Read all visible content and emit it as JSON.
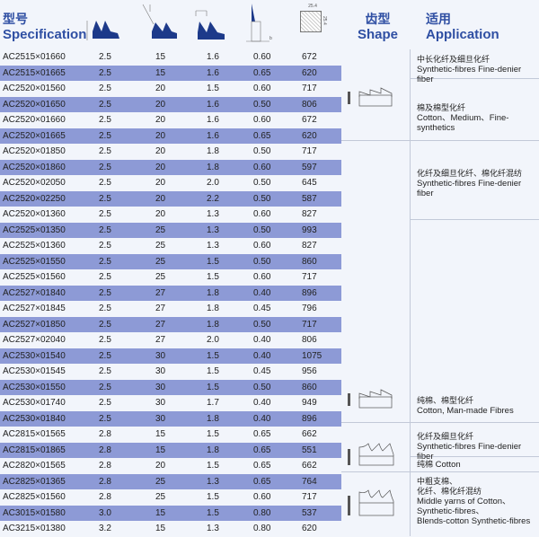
{
  "header": {
    "spec_zh": "型号",
    "spec_en": "Specification",
    "shape_zh": "齿型",
    "shape_en": "Shape",
    "app_zh": "适用",
    "app_en": "Application",
    "dim_label_width": "25.4",
    "dim_label_height": "25.4",
    "dim_label_b": "b"
  },
  "colors": {
    "header_text": "#2f4fa3",
    "band": "#8d9ad6",
    "background": "#f2f5fb"
  },
  "rows": [
    [
      "AC2515×01660",
      "2.5",
      "15",
      "1.6",
      "0.60",
      "672"
    ],
    [
      "AC2515×01665",
      "2.5",
      "15",
      "1.6",
      "0.65",
      "620"
    ],
    [
      "AC2520×01560",
      "2.5",
      "20",
      "1.5",
      "0.60",
      "717"
    ],
    [
      "AC2520×01650",
      "2.5",
      "20",
      "1.6",
      "0.50",
      "806"
    ],
    [
      "AC2520×01660",
      "2.5",
      "20",
      "1.6",
      "0.60",
      "672"
    ],
    [
      "AC2520×01665",
      "2.5",
      "20",
      "1.6",
      "0.65",
      "620"
    ],
    [
      "AC2520×01850",
      "2.5",
      "20",
      "1.8",
      "0.50",
      "717"
    ],
    [
      "AC2520×01860",
      "2.5",
      "20",
      "1.8",
      "0.60",
      "597"
    ],
    [
      "AC2520×02050",
      "2.5",
      "20",
      "2.0",
      "0.50",
      "645"
    ],
    [
      "AC2520×02250",
      "2.5",
      "20",
      "2.2",
      "0.50",
      "587"
    ],
    [
      "AC2520×01360",
      "2.5",
      "20",
      "1.3",
      "0.60",
      "827"
    ],
    [
      "AC2525×01350",
      "2.5",
      "25",
      "1.3",
      "0.50",
      "993"
    ],
    [
      "AC2525×01360",
      "2.5",
      "25",
      "1.3",
      "0.60",
      "827"
    ],
    [
      "AC2525×01550",
      "2.5",
      "25",
      "1.5",
      "0.50",
      "860"
    ],
    [
      "AC2525×01560",
      "2.5",
      "25",
      "1.5",
      "0.60",
      "717"
    ],
    [
      "AC2527×01840",
      "2.5",
      "27",
      "1.8",
      "0.40",
      "896"
    ],
    [
      "AC2527×01845",
      "2.5",
      "27",
      "1.8",
      "0.45",
      "796"
    ],
    [
      "AC2527×01850",
      "2.5",
      "27",
      "1.8",
      "0.50",
      "717"
    ],
    [
      "AC2527×02040",
      "2.5",
      "27",
      "2.0",
      "0.40",
      "806"
    ],
    [
      "AC2530×01540",
      "2.5",
      "30",
      "1.5",
      "0.40",
      "1075"
    ],
    [
      "AC2530×01545",
      "2.5",
      "30",
      "1.5",
      "0.45",
      "956"
    ],
    [
      "AC2530×01550",
      "2.5",
      "30",
      "1.5",
      "0.50",
      "860"
    ],
    [
      "AC2530×01740",
      "2.5",
      "30",
      "1.7",
      "0.40",
      "949"
    ],
    [
      "AC2530×01840",
      "2.5",
      "30",
      "1.8",
      "0.40",
      "896"
    ],
    [
      "AC2815×01565",
      "2.8",
      "15",
      "1.5",
      "0.65",
      "662"
    ],
    [
      "AC2815×01865",
      "2.8",
      "15",
      "1.8",
      "0.65",
      "551"
    ],
    [
      "AC2820×01565",
      "2.8",
      "20",
      "1.5",
      "0.65",
      "662"
    ],
    [
      "AC2825×01365",
      "2.8",
      "25",
      "1.3",
      "0.65",
      "764"
    ],
    [
      "AC2825×01560",
      "2.8",
      "25",
      "1.5",
      "0.60",
      "717"
    ],
    [
      "AC3015×01580",
      "3.0",
      "15",
      "1.5",
      "0.80",
      "537"
    ],
    [
      "AC3215×01380",
      "3.2",
      "15",
      "1.3",
      "0.80",
      "620"
    ]
  ],
  "applications": [
    {
      "zh": "中长化纤及细旦化纤",
      "en": "Synthetic-fibres Fine-denier fiber"
    },
    {
      "zh": "棉及棉型化纤",
      "en": "Cotton、Medium、Fine-synthetics"
    },
    {
      "zh": "化纤及细旦化纤、棉化纤混纺",
      "en": "Synthetic-fibres Fine-denier fiber"
    },
    {
      "zh": "纯棉、棉型化纤",
      "en": "Cotton, Man-made Fibres"
    },
    {
      "zh": "化纤及细旦化纤",
      "en": "Synthetic-fibres Fine-denier fiber"
    },
    {
      "zh": "纯棉",
      "en": "Cotton"
    },
    {
      "zh": "中粗支棉、",
      "zh2": "化纤、棉化纤混纺",
      "en": "Middle yarns of Cotton、",
      "en2": "Synthetic-fibres、",
      "en3": "Blends-cotton Synthetic-fibres"
    }
  ],
  "shapes": [
    "shallow-tooth-icon",
    "shallow-tooth-icon",
    "curved-tooth-icon",
    "curved-tooth-icon"
  ]
}
